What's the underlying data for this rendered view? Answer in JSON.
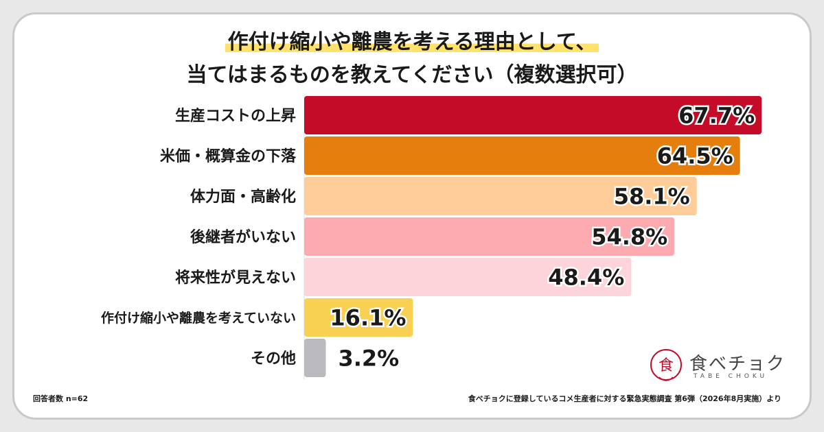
{
  "title": {
    "line1": "作付け縮小や離農を考える理由として、",
    "line2": "当てはまるものを教えてください（複数選択可）"
  },
  "chart_data": {
    "type": "bar",
    "orientation": "horizontal",
    "categories": [
      "生産コストの上昇",
      "米価・概算金の下落",
      "体力面・高齢化",
      "後継者がいない",
      "将来性が見えない",
      "作付け縮小や離農を考えていない",
      "その他"
    ],
    "values": [
      67.7,
      64.5,
      58.1,
      54.8,
      48.4,
      16.1,
      3.2
    ],
    "value_labels": [
      "67.7%",
      "64.5%",
      "58.1%",
      "54.8%",
      "48.4%",
      "16.1%",
      "3.2%"
    ],
    "colors": [
      "#c40c28",
      "#e57e0c",
      "#fdcc98",
      "#fca9b0",
      "#fdd4d9",
      "#f8d152",
      "#b9b9be"
    ],
    "xlim": [
      0,
      100
    ]
  },
  "footer": {
    "sample": "回答者数 n=62",
    "source": "食べチョクに登録しているコメ生産者に対する緊急実態調査 第6弾（2026年8月実施）より"
  },
  "logo": {
    "name": "食べチョク",
    "sub": "TABE CHOKU",
    "mark_text": "食",
    "color": "#c40c28"
  }
}
